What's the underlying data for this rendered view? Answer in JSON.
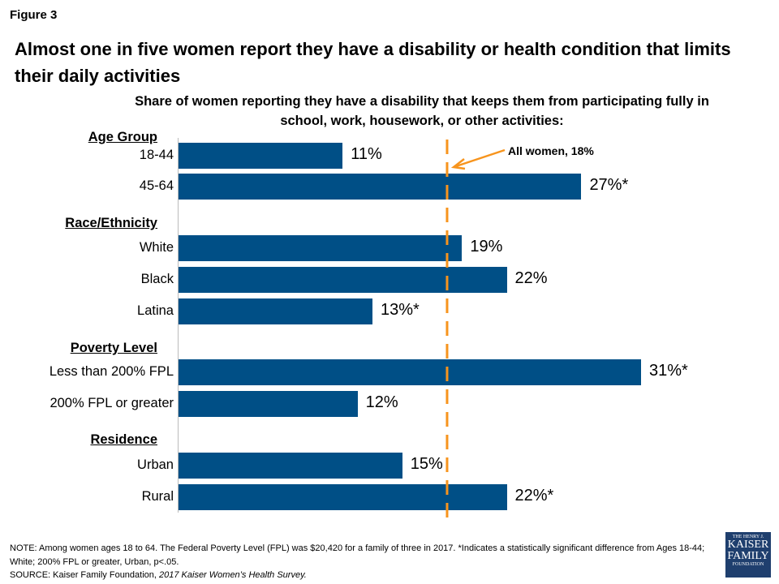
{
  "figure_label": "Figure 3",
  "chart_data": {
    "type": "bar",
    "orientation": "horizontal",
    "title": "Almost one in five women report they have a disability or health condition that limits their daily activities",
    "subtitle": "Share of women reporting they have a disability that keeps them from participating fully in school, work, housework, or other activities:",
    "xlim": [
      0,
      31
    ],
    "bar_color": "#004f86",
    "reference_line": {
      "value": 18,
      "label": "All women, 18%",
      "color": "#f7941d"
    },
    "groups": [
      {
        "name": "Age Group",
        "categories": [
          "18-44",
          "45-64"
        ],
        "values": [
          11,
          27
        ],
        "labels": [
          "11%",
          "27%*"
        ]
      },
      {
        "name": "Race/Ethnicity",
        "categories": [
          "White",
          "Black",
          "Latina"
        ],
        "values": [
          19,
          22,
          13
        ],
        "labels": [
          "19%",
          "22%",
          "13%*"
        ]
      },
      {
        "name": "Poverty Level",
        "categories": [
          "Less than 200% FPL",
          "200% FPL or greater"
        ],
        "values": [
          31,
          12
        ],
        "labels": [
          "31%*",
          "12%"
        ]
      },
      {
        "name": "Residence",
        "categories": [
          "Urban",
          "Rural"
        ],
        "values": [
          15,
          22
        ],
        "labels": [
          "15%",
          "22%*"
        ]
      }
    ]
  },
  "note": "NOTE: Among women ages 18 to 64. The Federal Poverty Level (FPL) was $20,420 for a family of three in 2017. *Indicates a statistically significant difference from Ages 18-44; White; 200% FPL or greater, Urban, p<.05.",
  "source_prefix": "SOURCE: Kaiser Family Foundation, ",
  "source_italic": "2017 Kaiser Women’s Health Survey.",
  "logo": {
    "line1": "THE HENRY J.",
    "line2": "KAISER",
    "line3": "FAMILY",
    "line4": "FOUNDATION"
  }
}
